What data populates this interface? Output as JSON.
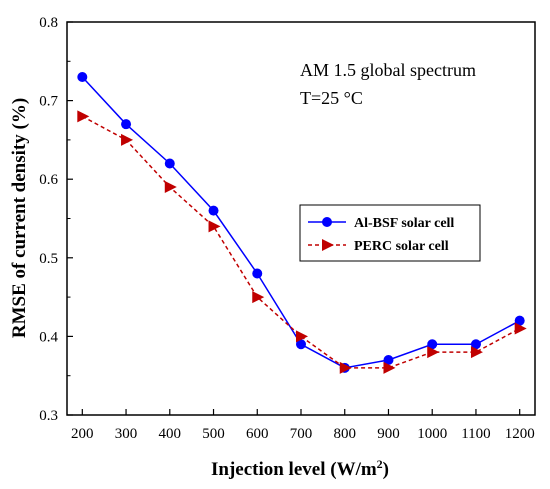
{
  "chart_data": {
    "type": "line",
    "x": [
      200,
      300,
      400,
      500,
      600,
      700,
      800,
      900,
      1000,
      1100,
      1200
    ],
    "xticks": [
      "200",
      "300",
      "400",
      "500",
      "600",
      "700",
      "800",
      "900",
      "1000",
      "1100",
      "1200"
    ],
    "yticks": [
      "0.3",
      "0.4",
      "0.5",
      "0.6",
      "0.7",
      "0.8"
    ],
    "ylim": [
      0.3,
      0.8
    ],
    "xlim": [
      165,
      1235
    ],
    "series": [
      {
        "name": "Al-BSF solar cell",
        "color": "#0000ff",
        "marker": "circle",
        "line": "solid",
        "values": [
          0.73,
          0.67,
          0.62,
          0.56,
          0.48,
          0.39,
          0.36,
          0.37,
          0.39,
          0.39,
          0.42
        ]
      },
      {
        "name": "PERC solar cell",
        "color": "#c00000",
        "marker": "triangle-right",
        "line": "dashed",
        "values": [
          0.68,
          0.65,
          0.59,
          0.54,
          0.45,
          0.4,
          0.36,
          0.36,
          0.38,
          0.38,
          0.41
        ]
      }
    ],
    "ylabel": "RMSE of current density (%)",
    "xlabel": {
      "main": "Injection level (W/m",
      "sup": "2",
      "close": ")"
    },
    "annotations": [
      "AM 1.5 global spectrum",
      "T=25 °C"
    ],
    "legend_position": "center-right",
    "grid": false
  }
}
